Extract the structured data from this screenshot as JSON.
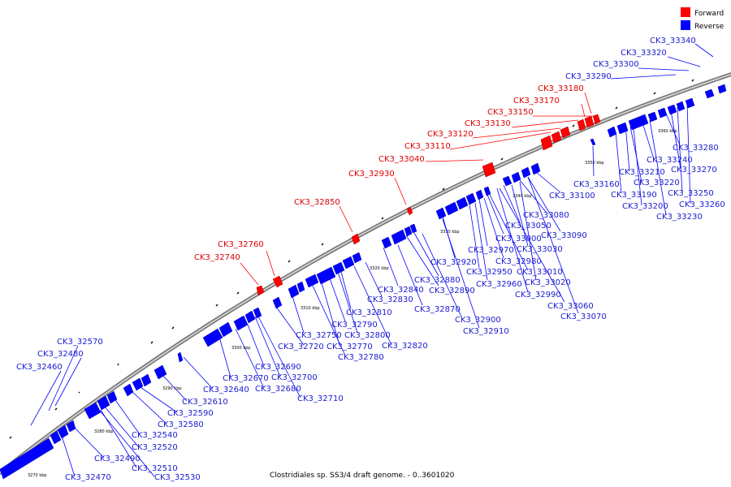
{
  "legend": {
    "forward_label": "Forward",
    "reverse_label": "Reverse",
    "forward_color": "#ff0000",
    "reverse_color": "#0000ff"
  },
  "footer": {
    "caption": "Clostridiales sp. SS3/4 draft genome. - 0..3601020"
  },
  "ticks": [
    "3270 kbp",
    "3280 kbp",
    "3290 kbp",
    "3300 kbp",
    "3310 kbp",
    "3320 kbp",
    "3330 kbp",
    "3340 kbp",
    "3350 kbp",
    "3360 kbp"
  ],
  "forward_labels": [
    "CK3_33180",
    "CK3_33170",
    "CK3_33150",
    "CK3_33130",
    "CK3_33120",
    "CK3_33110",
    "CK3_33040",
    "CK3_32930",
    "CK3_32850",
    "CK3_32760",
    "CK3_32740"
  ],
  "reverse_labels": [
    "CK3_33340",
    "CK3_33320",
    "CK3_33300",
    "CK3_33290",
    "CK3_32570",
    "CK3_32480",
    "CK3_32460",
    "CK3_33160",
    "CK3_33100",
    "CK3_33080",
    "CK3_33090",
    "CK3_33050",
    "CK3_33000",
    "CK3_33030",
    "CK3_32970",
    "CK3_32980",
    "CK3_32920",
    "CK3_32950",
    "CK3_33010",
    "CK3_32960",
    "CK3_33020",
    "CK3_32990",
    "CK3_32880",
    "CK3_32840",
    "CK3_32890",
    "CK3_32830",
    "CK3_32870",
    "CK3_32810",
    "CK3_32900",
    "CK3_32910",
    "CK3_33060",
    "CK3_33070",
    "CK3_32790",
    "CK3_32750",
    "CK3_32800",
    "CK3_32720",
    "CK3_32770",
    "CK3_32820",
    "CK3_32780",
    "CK3_32690",
    "CK3_32670",
    "CK3_32700",
    "CK3_32640",
    "CK3_32680",
    "CK3_32710",
    "CK3_32610",
    "CK3_32590",
    "CK3_32580",
    "CK3_32540",
    "CK3_32520",
    "CK3_32490",
    "CK3_32510",
    "CK3_32470",
    "CK3_32530",
    "CK3_33280",
    "CK3_33240",
    "CK3_33210",
    "CK3_33270",
    "CK3_33220",
    "CK3_33250",
    "CK3_33190",
    "CK3_33260",
    "CK3_33200",
    "CK3_33230"
  ]
}
